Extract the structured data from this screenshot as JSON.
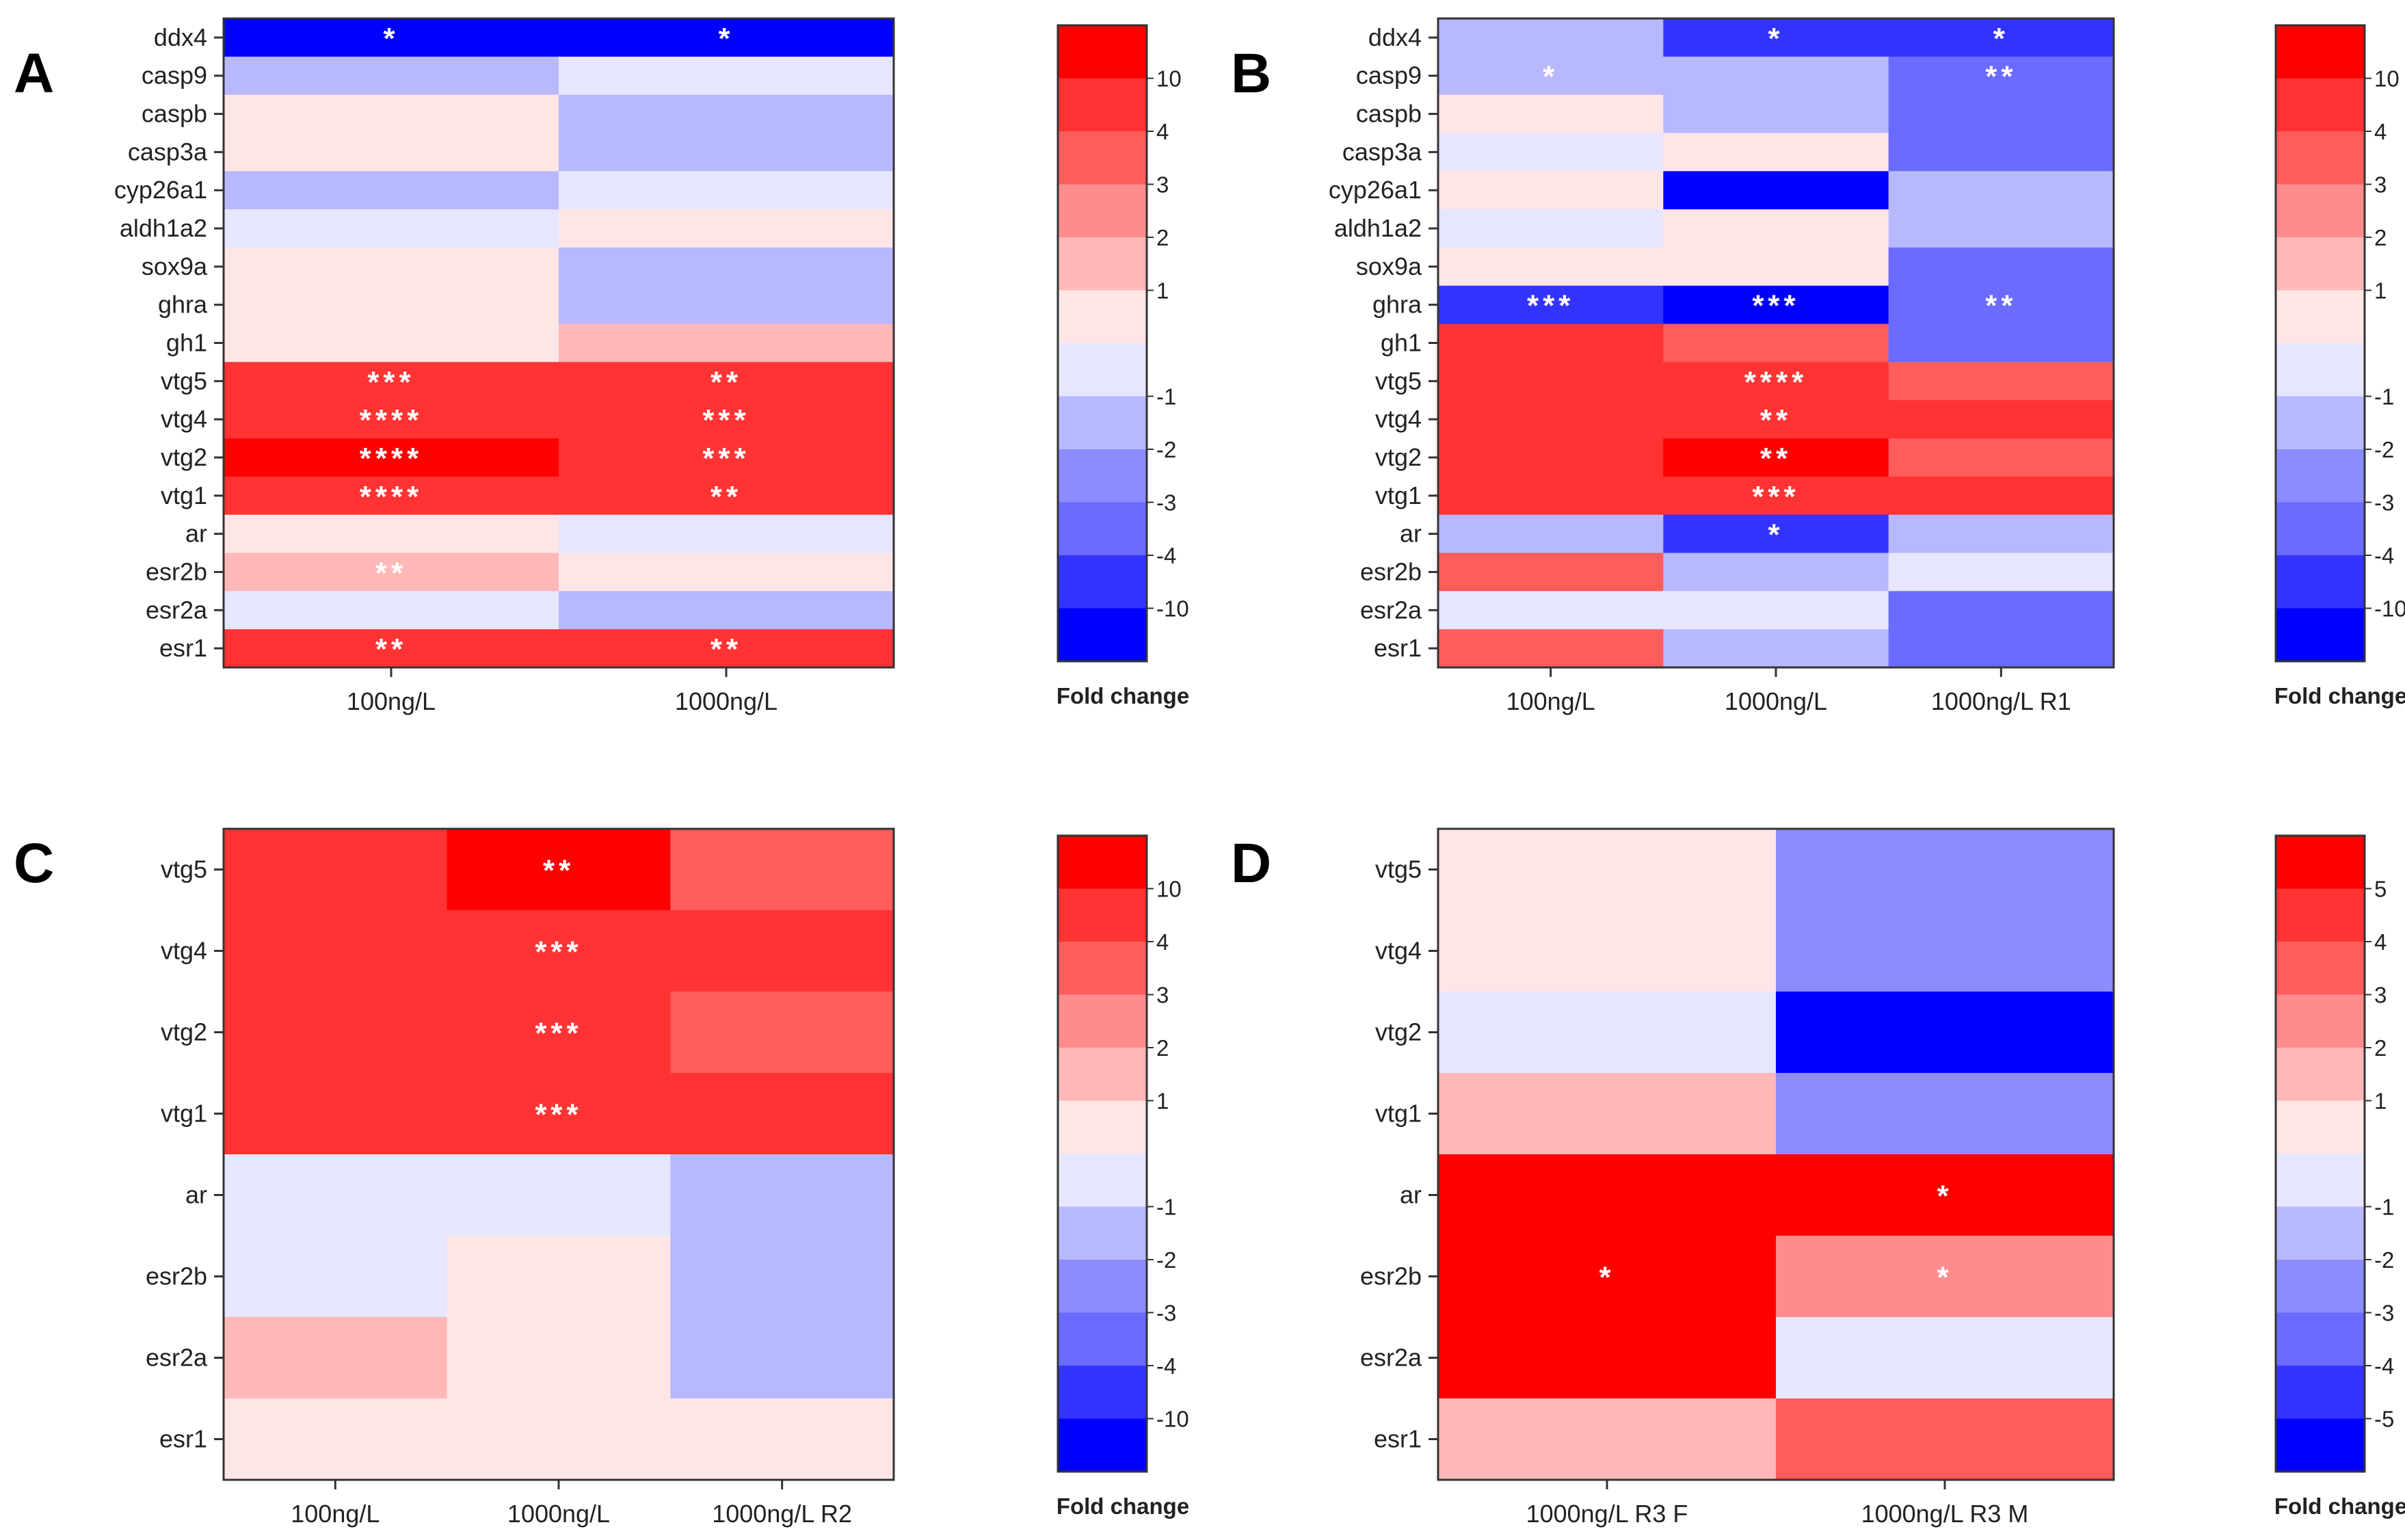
{
  "chart_data": [
    {
      "type": "heatmap",
      "panel": "A",
      "rows": [
        "ddx4",
        "casp9",
        "caspb",
        "casp3a",
        "cyp26a1",
        "aldh1a2",
        "sox9a",
        "ghra",
        "gh1",
        "vtg5",
        "vtg4",
        "vtg2",
        "vtg1",
        "ar",
        "esr2b",
        "esr2a",
        "esr1"
      ],
      "columns": [
        "100ng/L",
        "1000ng/L"
      ],
      "values": [
        [
          -10,
          -10
        ],
        [
          -2,
          -1
        ],
        [
          1,
          -2
        ],
        [
          1,
          -2
        ],
        [
          -2,
          -1
        ],
        [
          -1,
          1
        ],
        [
          1,
          -2
        ],
        [
          1,
          -2
        ],
        [
          1,
          2
        ],
        [
          10,
          10
        ],
        [
          10,
          10
        ],
        [
          11,
          10
        ],
        [
          10,
          10
        ],
        [
          1,
          -1
        ],
        [
          2,
          1
        ],
        [
          -1,
          -2
        ],
        [
          10,
          10
        ]
      ],
      "significance": [
        [
          "*",
          "*"
        ],
        [
          "",
          ""
        ],
        [
          "",
          ""
        ],
        [
          "",
          ""
        ],
        [
          "",
          ""
        ],
        [
          "",
          ""
        ],
        [
          "",
          ""
        ],
        [
          "",
          ""
        ],
        [
          "",
          ""
        ],
        [
          "***",
          "**"
        ],
        [
          "****",
          "***"
        ],
        [
          "****",
          "***"
        ],
        [
          "****",
          "**"
        ],
        [
          "",
          ""
        ],
        [
          "**",
          ""
        ],
        [
          "",
          ""
        ],
        [
          "**",
          "**"
        ]
      ],
      "legend": {
        "title": "Fold change",
        "ticks": [
          "10",
          "4",
          "3",
          "2",
          "1",
          "-1",
          "-2",
          "-3",
          "-4",
          "-10"
        ]
      }
    },
    {
      "type": "heatmap",
      "panel": "B",
      "rows": [
        "ddx4",
        "casp9",
        "caspb",
        "casp3a",
        "cyp26a1",
        "aldh1a2",
        "sox9a",
        "ghra",
        "gh1",
        "vtg5",
        "vtg4",
        "vtg2",
        "vtg1",
        "ar",
        "esr2b",
        "esr2a",
        "esr1"
      ],
      "columns": [
        "100ng/L",
        "1000ng/L",
        "1000ng/L R1"
      ],
      "values": [
        [
          -2,
          -4,
          -4
        ],
        [
          -2,
          -2,
          -3
        ],
        [
          1,
          -2,
          -3
        ],
        [
          -1,
          1,
          -3
        ],
        [
          1,
          -10,
          -2
        ],
        [
          -1,
          1,
          -2
        ],
        [
          1,
          1,
          -3
        ],
        [
          -4,
          -10,
          -3
        ],
        [
          10,
          4,
          -3
        ],
        [
          10,
          10,
          4
        ],
        [
          10,
          10,
          10
        ],
        [
          10,
          11,
          4
        ],
        [
          10,
          10,
          10
        ],
        [
          -2,
          -4,
          -2
        ],
        [
          4,
          -2,
          -1
        ],
        [
          -1,
          -1,
          -3
        ],
        [
          4,
          -2,
          -3
        ]
      ],
      "significance": [
        [
          "",
          "*",
          "*"
        ],
        [
          "*",
          "",
          "**"
        ],
        [
          "",
          "",
          ""
        ],
        [
          "",
          "",
          ""
        ],
        [
          "",
          "",
          ""
        ],
        [
          "",
          "",
          ""
        ],
        [
          "",
          "",
          ""
        ],
        [
          "***",
          "***",
          "**"
        ],
        [
          "",
          "",
          ""
        ],
        [
          "",
          "****",
          ""
        ],
        [
          "",
          "**",
          ""
        ],
        [
          "",
          "**",
          ""
        ],
        [
          "",
          "***",
          ""
        ],
        [
          "",
          "*",
          ""
        ],
        [
          "",
          "",
          ""
        ],
        [
          "",
          "",
          ""
        ],
        [
          "",
          "",
          ""
        ]
      ],
      "legend": {
        "title": "Fold change",
        "ticks": [
          "10",
          "4",
          "3",
          "2",
          "1",
          "-1",
          "-2",
          "-3",
          "-4",
          "-10"
        ]
      }
    },
    {
      "type": "heatmap",
      "panel": "C",
      "rows": [
        "vtg5",
        "vtg4",
        "vtg2",
        "vtg1",
        "ar",
        "esr2b",
        "esr2a",
        "esr1"
      ],
      "columns": [
        "100ng/L",
        "1000ng/L",
        "1000ng/L R2"
      ],
      "values": [
        [
          10,
          11,
          4
        ],
        [
          10,
          10,
          10
        ],
        [
          10,
          10,
          4
        ],
        [
          10,
          10,
          10
        ],
        [
          -1,
          -1,
          -2
        ],
        [
          -1,
          1,
          -2
        ],
        [
          2,
          1,
          -2
        ],
        [
          1,
          1,
          1
        ]
      ],
      "significance": [
        [
          "",
          "**",
          ""
        ],
        [
          "",
          "***",
          ""
        ],
        [
          "",
          "***",
          ""
        ],
        [
          "",
          "***",
          ""
        ],
        [
          "",
          "",
          ""
        ],
        [
          "",
          "",
          ""
        ],
        [
          "",
          "",
          ""
        ],
        [
          "",
          "",
          ""
        ]
      ],
      "legend": {
        "title": "Fold change",
        "ticks": [
          "10",
          "4",
          "3",
          "2",
          "1",
          "-1",
          "-2",
          "-3",
          "-4",
          "-10"
        ]
      }
    },
    {
      "type": "heatmap",
      "panel": "D",
      "rows": [
        "vtg5",
        "vtg4",
        "vtg2",
        "vtg1",
        "ar",
        "esr2b",
        "esr2a",
        "esr1"
      ],
      "columns": [
        "1000ng/L R3 F",
        "1000ng/L R3 M"
      ],
      "values": [
        [
          1,
          -3
        ],
        [
          1,
          -3
        ],
        [
          -1,
          -5
        ],
        [
          2,
          -3
        ],
        [
          5,
          5
        ],
        [
          5,
          3
        ],
        [
          5,
          -1
        ],
        [
          2,
          4
        ]
      ],
      "significance": [
        [
          "",
          ""
        ],
        [
          "",
          ""
        ],
        [
          "",
          ""
        ],
        [
          "",
          ""
        ],
        [
          "",
          "*"
        ],
        [
          "*",
          "*"
        ],
        [
          "",
          ""
        ],
        [
          "",
          ""
        ]
      ],
      "legend": {
        "title": "Fold change",
        "ticks": [
          "5",
          "4",
          "3",
          "2",
          "1",
          "-1",
          "-2",
          "-3",
          "-4",
          "-5"
        ]
      }
    }
  ],
  "colors": {
    "pos": [
      "#ffe6e6",
      "#ffb8b8",
      "#ff8c8c",
      "#ff5c5c",
      "#ff3333",
      "#ff0000"
    ],
    "neg": [
      "#e6e6ff",
      "#b8b8ff",
      "#8c8cff",
      "#6b6bff",
      "#3333ff",
      "#0000ff"
    ],
    "legend_steps": [
      "#ff0000",
      "#ff3333",
      "#ff5c5c",
      "#ff8c8c",
      "#ffb8b8",
      "#ffe6e6",
      "#e6e6ff",
      "#b8b8ff",
      "#8c8cff",
      "#6b6bff",
      "#3333ff",
      "#0000ff"
    ],
    "star": "#ffffff"
  }
}
